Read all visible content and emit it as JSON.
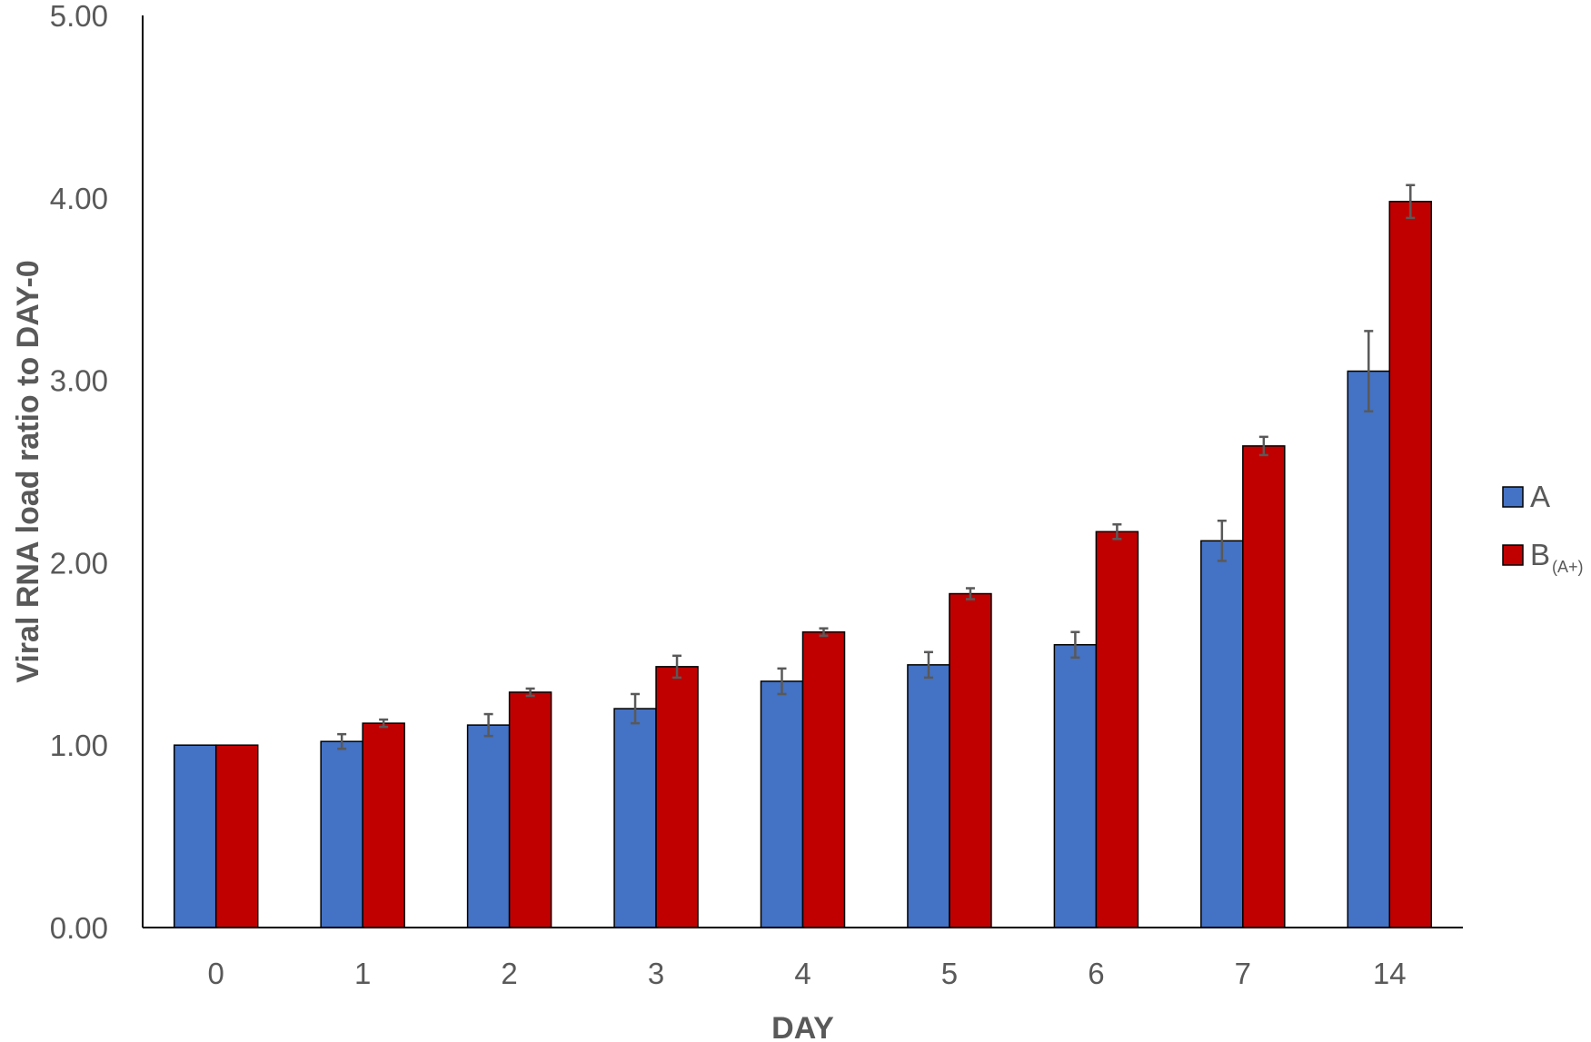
{
  "chart_data": {
    "type": "bar",
    "title": "",
    "xlabel": "DAY",
    "ylabel": "Viral RNA load ratio to DAY-0",
    "categories": [
      "0",
      "1",
      "2",
      "3",
      "4",
      "5",
      "6",
      "7",
      "14"
    ],
    "ylim": [
      0,
      5
    ],
    "yticks": [
      "0.00",
      "1.00",
      "2.00",
      "3.00",
      "4.00",
      "5.00"
    ],
    "grid": false,
    "legend_position": "right",
    "series": [
      {
        "name": "A",
        "name_main": "A",
        "name_sub": "",
        "color": "#4472C4",
        "values": [
          1.0,
          1.02,
          1.11,
          1.2,
          1.35,
          1.44,
          1.55,
          2.12,
          3.05
        ],
        "errors": [
          0.0,
          0.04,
          0.06,
          0.08,
          0.07,
          0.07,
          0.07,
          0.11,
          0.22
        ]
      },
      {
        "name": "B(A+)",
        "name_main": "B",
        "name_sub": "(A+)",
        "color": "#C00000",
        "values": [
          1.0,
          1.12,
          1.29,
          1.43,
          1.62,
          1.83,
          2.17,
          2.64,
          3.98
        ],
        "errors": [
          0.0,
          0.02,
          0.02,
          0.06,
          0.02,
          0.03,
          0.04,
          0.05,
          0.09
        ]
      }
    ]
  }
}
